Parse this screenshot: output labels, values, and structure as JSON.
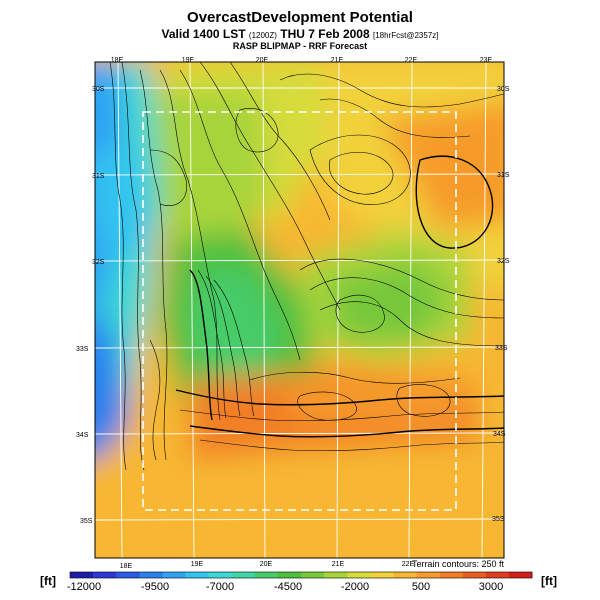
{
  "header": {
    "title": "OvercastDevelopment Potential",
    "valid_prefix": "Valid 1400 LST",
    "valid_code": "(1200Z)",
    "valid_date": "THU 7 Feb 2008",
    "valid_fcst": "[18hrFcst@2357z]",
    "subtitle": "RASP BLIPMAP - RRF Forecast"
  },
  "map": {
    "top_lon_labels": [
      "18E",
      "19E",
      "20E",
      "21E",
      "22E",
      "23E"
    ],
    "bottom_lon_labels": [
      "18E",
      "19E",
      "20E",
      "21E",
      "22E"
    ],
    "left_lat_labels": [
      "30S",
      "31S",
      "32S",
      "33S",
      "34S",
      "35S"
    ],
    "right_lat_labels": [
      "30S",
      "31S",
      "32S",
      "33S",
      "34S",
      "35S"
    ],
    "terrain_note": "Terrain contours: 250 ft"
  },
  "colorbar": {
    "unit_left": "[ft]",
    "unit_right": "[ft]",
    "labels": [
      "-12000",
      "-9500",
      "-7000",
      "-4500",
      "-2000",
      "500",
      "3000"
    ],
    "colors": [
      "#1f1ea8",
      "#2f37d8",
      "#2a5ae6",
      "#2b7fee",
      "#2fa2f4",
      "#33c4f0",
      "#3ad8d6",
      "#3fd6a8",
      "#47cc6a",
      "#4fbf3e",
      "#77c83a",
      "#a8d43a",
      "#d6dc3a",
      "#f2d13a",
      "#f7b733",
      "#f69b2c",
      "#f27f26",
      "#ea5e20",
      "#df3d1c",
      "#d21d19"
    ]
  }
}
